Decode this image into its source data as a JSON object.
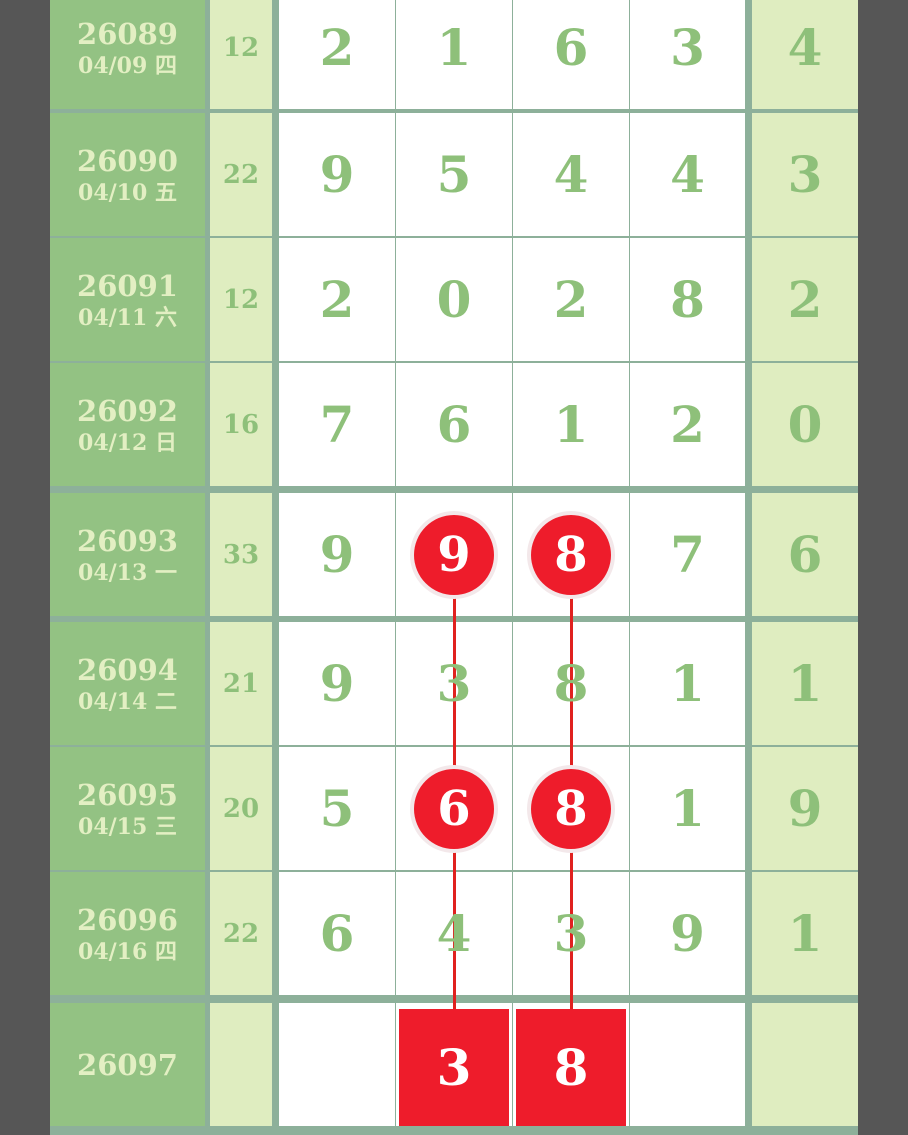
{
  "colors": {
    "issue_bg": "#93c283",
    "light_bg": "#dfedc0",
    "number": "#8ec07a",
    "highlight": "#ee1c2b",
    "divider": "#8db09a",
    "frame": "#565656"
  },
  "rows": [
    {
      "issue": "26089",
      "date": "04/09 四",
      "sum": "12",
      "digits": [
        "2",
        "1",
        "6",
        "3"
      ],
      "last": "4",
      "hl": []
    },
    {
      "issue": "26090",
      "date": "04/10 五",
      "sum": "22",
      "digits": [
        "9",
        "5",
        "4",
        "4"
      ],
      "last": "3",
      "hl": []
    },
    {
      "issue": "26091",
      "date": "04/11 六",
      "sum": "12",
      "digits": [
        "2",
        "0",
        "2",
        "8"
      ],
      "last": "2",
      "hl": []
    },
    {
      "issue": "26092",
      "date": "04/12 日",
      "sum": "16",
      "digits": [
        "7",
        "6",
        "1",
        "2"
      ],
      "last": "0",
      "hl": []
    },
    {
      "issue": "26093",
      "date": "04/13 一",
      "sum": "33",
      "digits": [
        "9",
        "9",
        "8",
        "7"
      ],
      "last": "6",
      "hl": [
        1,
        2
      ]
    },
    {
      "issue": "26094",
      "date": "04/14 二",
      "sum": "21",
      "digits": [
        "9",
        "3",
        "8",
        "1"
      ],
      "last": "1",
      "hl": []
    },
    {
      "issue": "26095",
      "date": "04/15 三",
      "sum": "20",
      "digits": [
        "5",
        "6",
        "8",
        "1"
      ],
      "last": "9",
      "hl": [
        1,
        2
      ]
    },
    {
      "issue": "26096",
      "date": "04/16 四",
      "sum": "22",
      "digits": [
        "6",
        "4",
        "3",
        "9"
      ],
      "last": "1",
      "hl": []
    }
  ],
  "next": {
    "issue": "26097",
    "predicted": [
      "3",
      "8"
    ],
    "predicted_cols": [
      1,
      2
    ]
  }
}
